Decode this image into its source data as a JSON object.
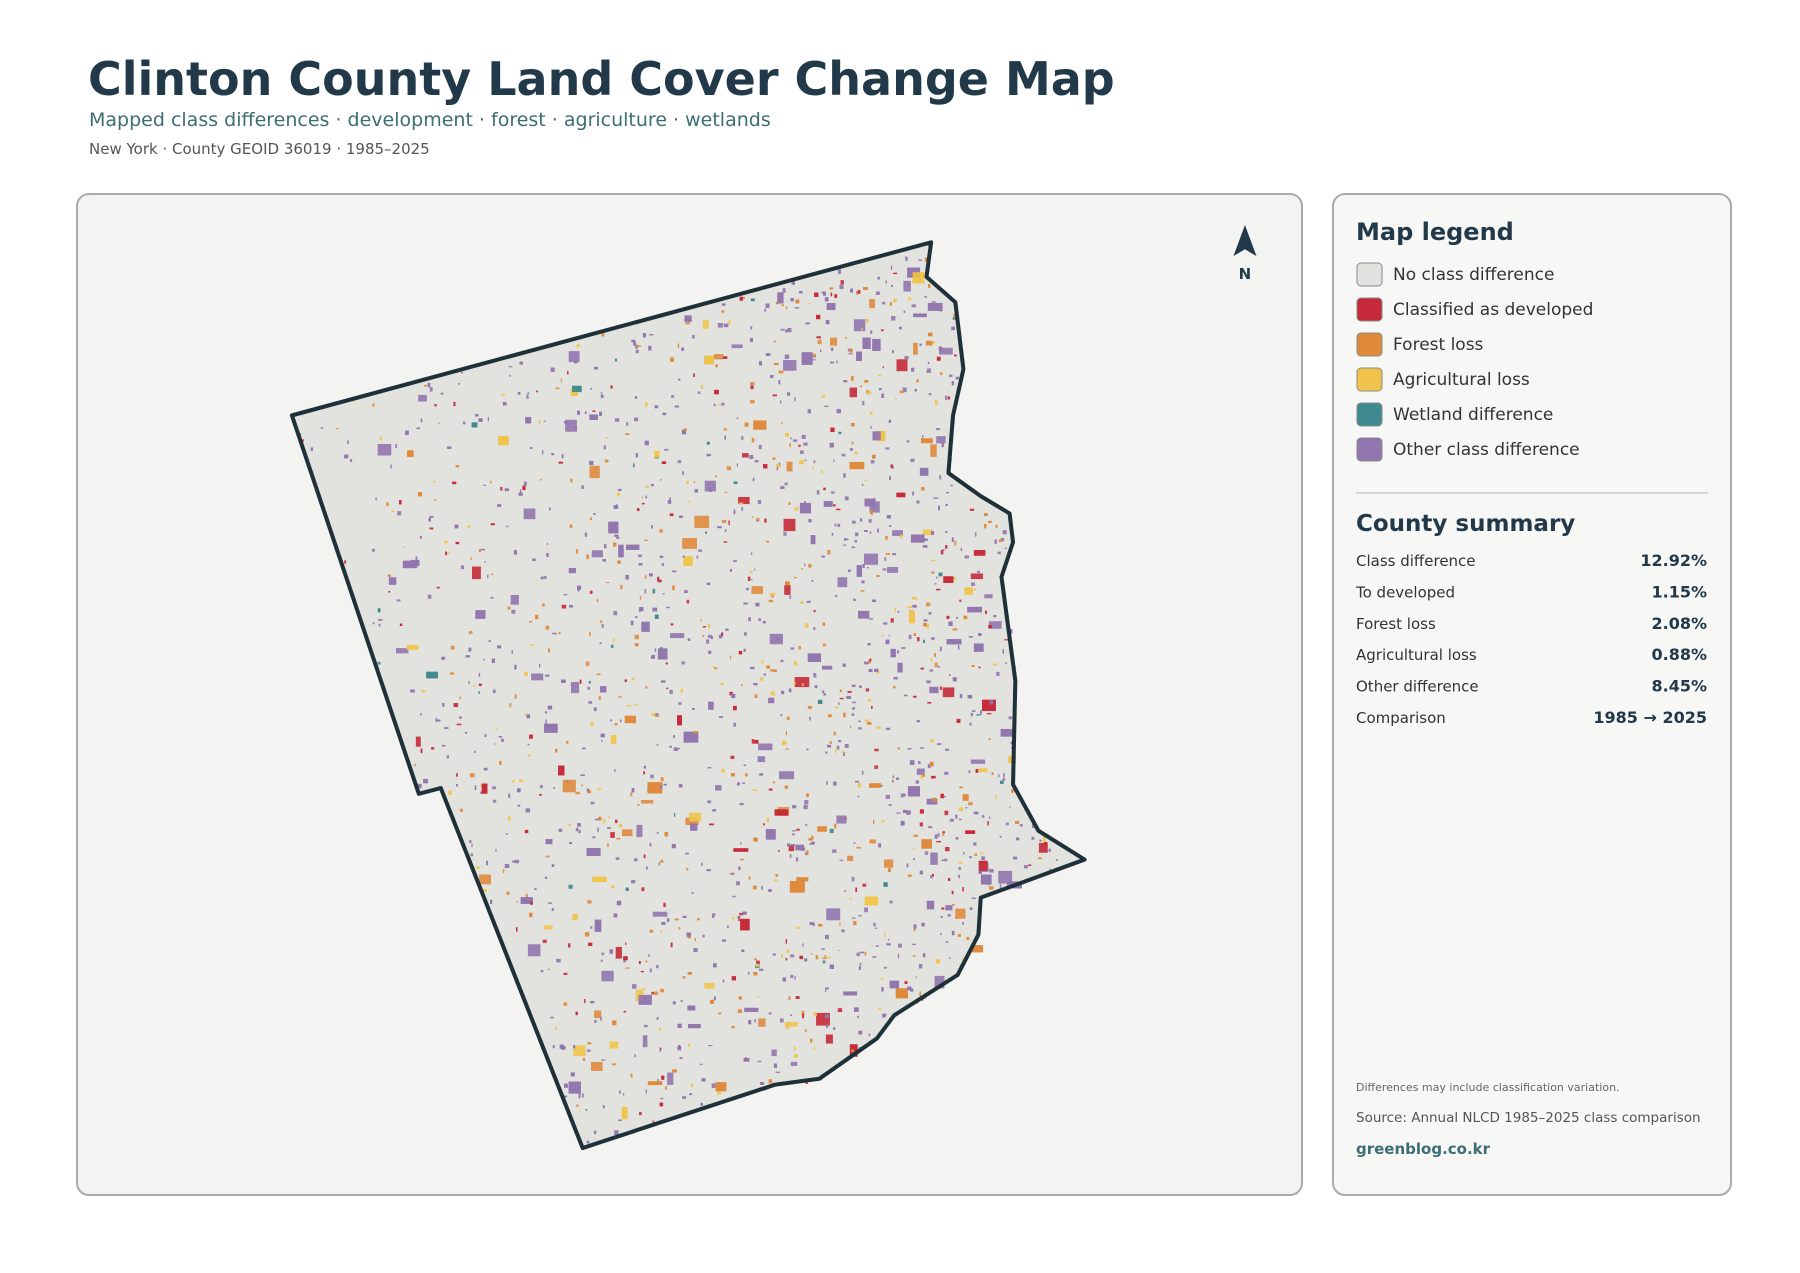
{
  "header": {
    "title": "Clinton County Land Cover Change Map",
    "subtitle": "Mapped class differences · development · forest · agriculture · wetlands",
    "meta": "New York · County GEOID 36019 · 1985–2025"
  },
  "map": {
    "north_label": "N"
  },
  "legend": {
    "title": "Map legend",
    "items": [
      {
        "label": "No class difference",
        "color": "#e2e3df"
      },
      {
        "label": "Classified as developed",
        "color": "#c62a3a"
      },
      {
        "label": "Forest loss",
        "color": "#e08a3c"
      },
      {
        "label": "Agricultural loss",
        "color": "#f0c44c"
      },
      {
        "label": "Wetland difference",
        "color": "#3f8a90"
      },
      {
        "label": "Other class difference",
        "color": "#9276ae"
      }
    ]
  },
  "summary": {
    "title": "County summary",
    "rows": [
      {
        "label": "Class difference",
        "value": "12.92%"
      },
      {
        "label": "To developed",
        "value": "1.15%"
      },
      {
        "label": "Forest loss",
        "value": "2.08%"
      },
      {
        "label": "Agricultural loss",
        "value": "0.88%"
      },
      {
        "label": "Other difference",
        "value": "8.45%"
      },
      {
        "label": "Comparison",
        "value": "1985 → 2025"
      }
    ]
  },
  "footer": {
    "note": "Differences may include classification variation.",
    "source": "Source: Annual NLCD 1985–2025 class comparison",
    "site": "greenblog.co.kr"
  }
}
